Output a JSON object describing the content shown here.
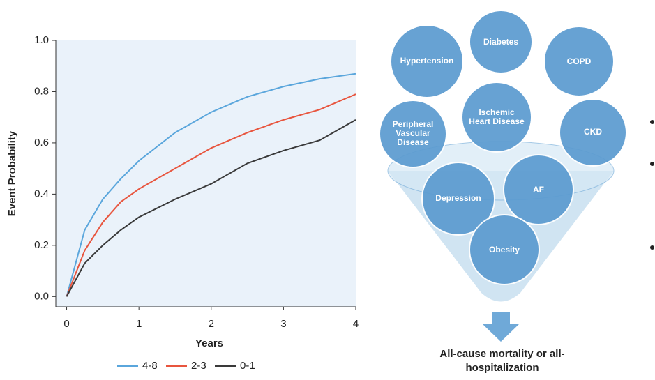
{
  "chart_data": {
    "type": "line",
    "ylabel": "Event Probability",
    "xlabel": "Years",
    "x": [
      0,
      0.25,
      0.5,
      0.75,
      1,
      1.5,
      2,
      2.5,
      3,
      3.5,
      4
    ],
    "series": [
      {
        "name": "4-8",
        "color": "#5aa6dc",
        "values": [
          0,
          0.26,
          0.38,
          0.46,
          0.53,
          0.64,
          0.72,
          0.78,
          0.82,
          0.85,
          0.87
        ]
      },
      {
        "name": "2-3",
        "color": "#e8553e",
        "values": [
          0,
          0.18,
          0.29,
          0.37,
          0.42,
          0.5,
          0.58,
          0.64,
          0.69,
          0.73,
          0.79
        ]
      },
      {
        "name": "0-1",
        "color": "#3a3a3a",
        "values": [
          0,
          0.13,
          0.2,
          0.26,
          0.31,
          0.38,
          0.44,
          0.52,
          0.57,
          0.61,
          0.69
        ]
      }
    ],
    "xlim": [
      -0.15,
      4
    ],
    "ylim": [
      -0.04,
      1.0
    ],
    "xticks": [
      0,
      1,
      2,
      3,
      4
    ],
    "yticks": [
      {
        "value": 0,
        "label": "0.0"
      },
      0.2,
      0.4,
      0.6,
      0.8,
      {
        "value": 1,
        "label": "1.0"
      }
    ],
    "grid": false
  },
  "diagram": {
    "nodes": [
      {
        "label": "Diabetes"
      },
      {
        "label": "Hypertension"
      },
      {
        "label": "COPD"
      },
      {
        "label": "Ischemic Heart Disease"
      },
      {
        "label": "Peripheral Vascular Disease"
      },
      {
        "label": "CKD"
      },
      {
        "label": "Depression"
      },
      {
        "label": "AF"
      },
      {
        "label": "Obesity"
      }
    ],
    "outcome": "All-cause mortality or all-hospitalization"
  }
}
